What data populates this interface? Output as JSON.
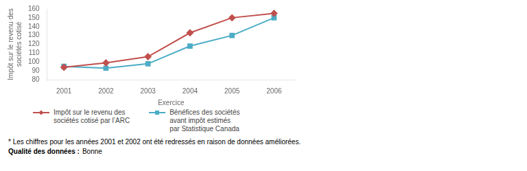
{
  "chart_data": {
    "type": "line",
    "x_label": "Exercice",
    "y_label": "Impôt sur le revenu des\nsociétés cotisé",
    "x": [
      2001,
      2002,
      2003,
      2004,
      2005,
      2006
    ],
    "series": [
      {
        "name": "Impôt sur le revenu des\nsociétés cotisé par l’ARC",
        "color": "#C0504D",
        "marker": "diamond",
        "values": [
          94,
          99,
          106,
          133,
          150,
          155
        ]
      },
      {
        "name": "Bénéfices des sociétés\navant  impôt estimés\npar Statistique Canada",
        "color": "#4BACC6",
        "marker": "square",
        "values": [
          95,
          93,
          98,
          118,
          130,
          150
        ]
      }
    ],
    "xlim": [
      2000.6,
      2006.5
    ],
    "xticks": [
      2001,
      2002,
      2003,
      2004,
      2005,
      2006
    ],
    "ylim": [
      80,
      160
    ],
    "yticks": [
      80,
      90,
      100,
      110,
      120,
      130,
      140,
      150,
      160
    ],
    "grid": false,
    "legend": "bottom",
    "annotations": [
      [
        "* Les chiffres pour les années 2001 et 2002 ont été redressés en raison de données améliorées."
      ],
      [
        "Qualité des données :",
        "Bonne"
      ]
    ]
  }
}
